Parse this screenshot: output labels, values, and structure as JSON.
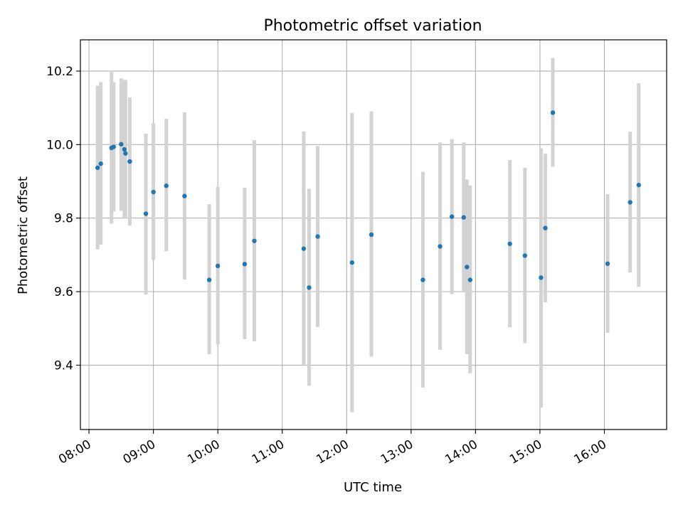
{
  "chart_data": {
    "type": "scatter",
    "title": "Photometric offset variation",
    "xlabel": "UTC time",
    "ylabel": "Photometric offset",
    "xlim": [
      "07:52",
      "16:58"
    ],
    "ylim": [
      9.225,
      10.285
    ],
    "xticks": [
      "08:00",
      "09:00",
      "10:00",
      "11:00",
      "12:00",
      "13:00",
      "14:00",
      "15:00",
      "16:00"
    ],
    "yticks": [
      "9.4",
      "9.6",
      "9.8",
      "10.0",
      "10.2"
    ],
    "grid": true,
    "colors": {
      "point": "#1f77b4",
      "errorbar": "#d3d3d3",
      "grid": "#b0b0b0"
    },
    "points": [
      {
        "x": "08:08",
        "y": 9.937,
        "ylow": 9.715,
        "yhigh": 10.16
      },
      {
        "x": "08:11",
        "y": 9.948,
        "ylow": 9.728,
        "yhigh": 10.17
      },
      {
        "x": "08:21",
        "y": 9.991,
        "ylow": 9.785,
        "yhigh": 10.198
      },
      {
        "x": "08:23",
        "y": 9.994,
        "ylow": 9.818,
        "yhigh": 10.17
      },
      {
        "x": "08:30",
        "y": 10.001,
        "ylow": 9.82,
        "yhigh": 10.18
      },
      {
        "x": "08:33",
        "y": 9.987,
        "ylow": 9.8,
        "yhigh": 10.176
      },
      {
        "x": "08:34",
        "y": 9.976,
        "ylow": 9.8,
        "yhigh": 10.176
      },
      {
        "x": "08:38",
        "y": 9.954,
        "ylow": 9.78,
        "yhigh": 10.128
      },
      {
        "x": "08:53",
        "y": 9.812,
        "ylow": 9.592,
        "yhigh": 10.03
      },
      {
        "x": "09:00",
        "y": 9.871,
        "ylow": 9.686,
        "yhigh": 10.058
      },
      {
        "x": "09:12",
        "y": 9.888,
        "ylow": 9.71,
        "yhigh": 10.07
      },
      {
        "x": "09:29",
        "y": 9.86,
        "ylow": 9.633,
        "yhigh": 10.088
      },
      {
        "x": "09:52",
        "y": 9.632,
        "ylow": 9.43,
        "yhigh": 9.838
      },
      {
        "x": "10:00",
        "y": 9.67,
        "ylow": 9.457,
        "yhigh": 9.885
      },
      {
        "x": "10:25",
        "y": 9.675,
        "ylow": 9.471,
        "yhigh": 9.883
      },
      {
        "x": "10:34",
        "y": 9.738,
        "ylow": 9.465,
        "yhigh": 10.012
      },
      {
        "x": "11:20",
        "y": 9.717,
        "ylow": 9.4,
        "yhigh": 10.036
      },
      {
        "x": "11:25",
        "y": 9.611,
        "ylow": 9.344,
        "yhigh": 9.88
      },
      {
        "x": "11:33",
        "y": 9.75,
        "ylow": 9.504,
        "yhigh": 9.996
      },
      {
        "x": "12:05",
        "y": 9.679,
        "ylow": 9.272,
        "yhigh": 10.086
      },
      {
        "x": "12:23",
        "y": 9.755,
        "ylow": 9.423,
        "yhigh": 10.09
      },
      {
        "x": "13:11",
        "y": 9.632,
        "ylow": 9.339,
        "yhigh": 9.926
      },
      {
        "x": "13:27",
        "y": 9.723,
        "ylow": 9.442,
        "yhigh": 10.006
      },
      {
        "x": "13:38",
        "y": 9.804,
        "ylow": 9.593,
        "yhigh": 10.015
      },
      {
        "x": "13:49",
        "y": 9.802,
        "ylow": 9.598,
        "yhigh": 10.006
      },
      {
        "x": "13:52",
        "y": 9.667,
        "ylow": 9.43,
        "yhigh": 9.905
      },
      {
        "x": "13:55",
        "y": 9.632,
        "ylow": 9.378,
        "yhigh": 9.889
      },
      {
        "x": "14:32",
        "y": 9.73,
        "ylow": 9.503,
        "yhigh": 9.958
      },
      {
        "x": "14:46",
        "y": 9.698,
        "ylow": 9.46,
        "yhigh": 9.937
      },
      {
        "x": "15:01",
        "y": 9.638,
        "ylow": 9.285,
        "yhigh": 9.99
      },
      {
        "x": "15:05",
        "y": 9.773,
        "ylow": 9.571,
        "yhigh": 9.975
      },
      {
        "x": "15:12",
        "y": 10.087,
        "ylow": 9.94,
        "yhigh": 10.236
      },
      {
        "x": "16:03",
        "y": 9.676,
        "ylow": 9.488,
        "yhigh": 9.865
      },
      {
        "x": "16:24",
        "y": 9.843,
        "ylow": 9.652,
        "yhigh": 10.035
      },
      {
        "x": "16:32",
        "y": 9.89,
        "ylow": 9.613,
        "yhigh": 10.167
      }
    ]
  }
}
